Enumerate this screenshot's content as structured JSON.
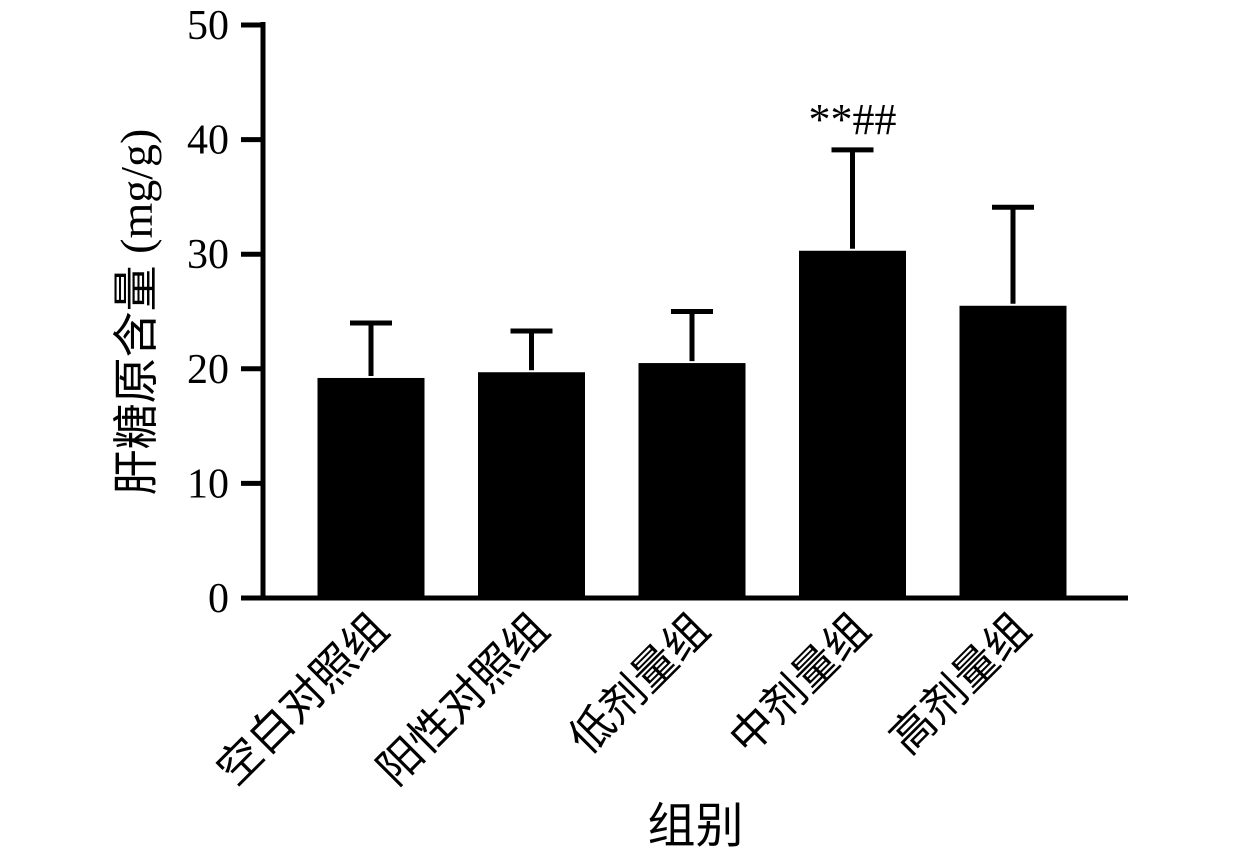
{
  "chart_data": {
    "type": "bar",
    "title": "",
    "categories": [
      "空白对照组",
      "阳性对照组",
      "低剂量组",
      "中剂量组",
      "高剂量组"
    ],
    "values": [
      19.2,
      19.7,
      20.5,
      30.3,
      25.5
    ],
    "errors_upper": [
      4.8,
      3.6,
      4.5,
      8.8,
      8.6
    ],
    "annotations": [
      {
        "category_index": 3,
        "text": "**##"
      }
    ],
    "xlabel": "组别",
    "ylabel": "肝糖原含量 (mg/g)",
    "ylim": [
      0,
      50
    ],
    "yticks": [
      0,
      10,
      20,
      30,
      40,
      50
    ],
    "bar_color": "#000000",
    "axis_color": "#000000",
    "grid": false,
    "legend": "none"
  }
}
